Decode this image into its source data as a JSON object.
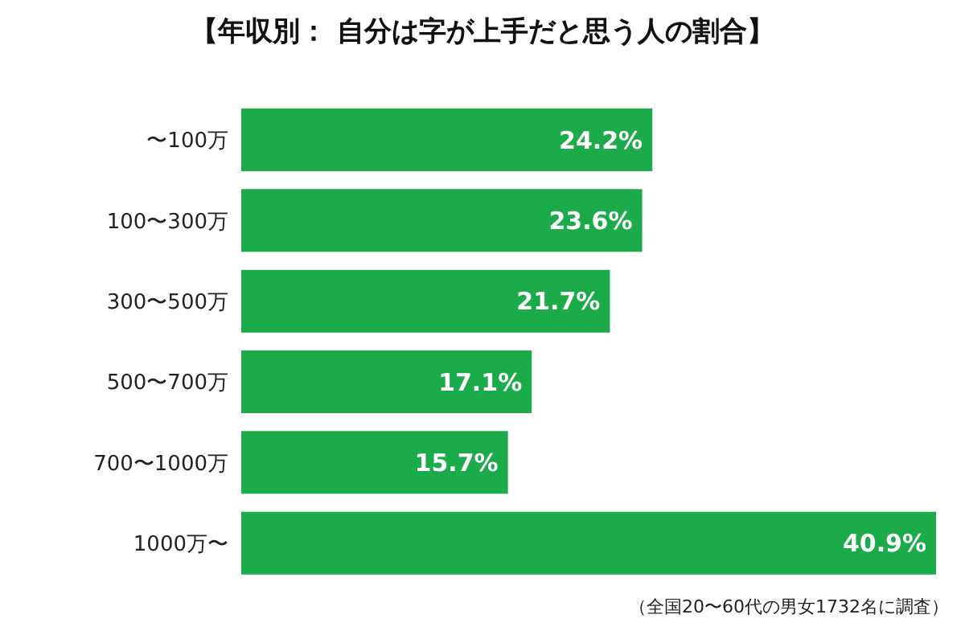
{
  "chart_data": {
    "type": "bar",
    "orientation": "horizontal",
    "title": "【年収別： 自分は字が上手だと思う人の割合】",
    "categories": [
      "〜100万",
      "100〜300万",
      "300〜500万",
      "500〜700万",
      "700〜1000万",
      "1000万〜"
    ],
    "values": [
      24.2,
      23.6,
      21.7,
      17.1,
      15.7,
      40.9
    ],
    "value_labels": [
      "24.2%",
      "23.6%",
      "21.7%",
      "17.1%",
      "15.7%",
      "40.9%"
    ],
    "color": "#1bab4b",
    "annotations": [
      "（全国20〜60代の男女1732名に調査）"
    ]
  }
}
